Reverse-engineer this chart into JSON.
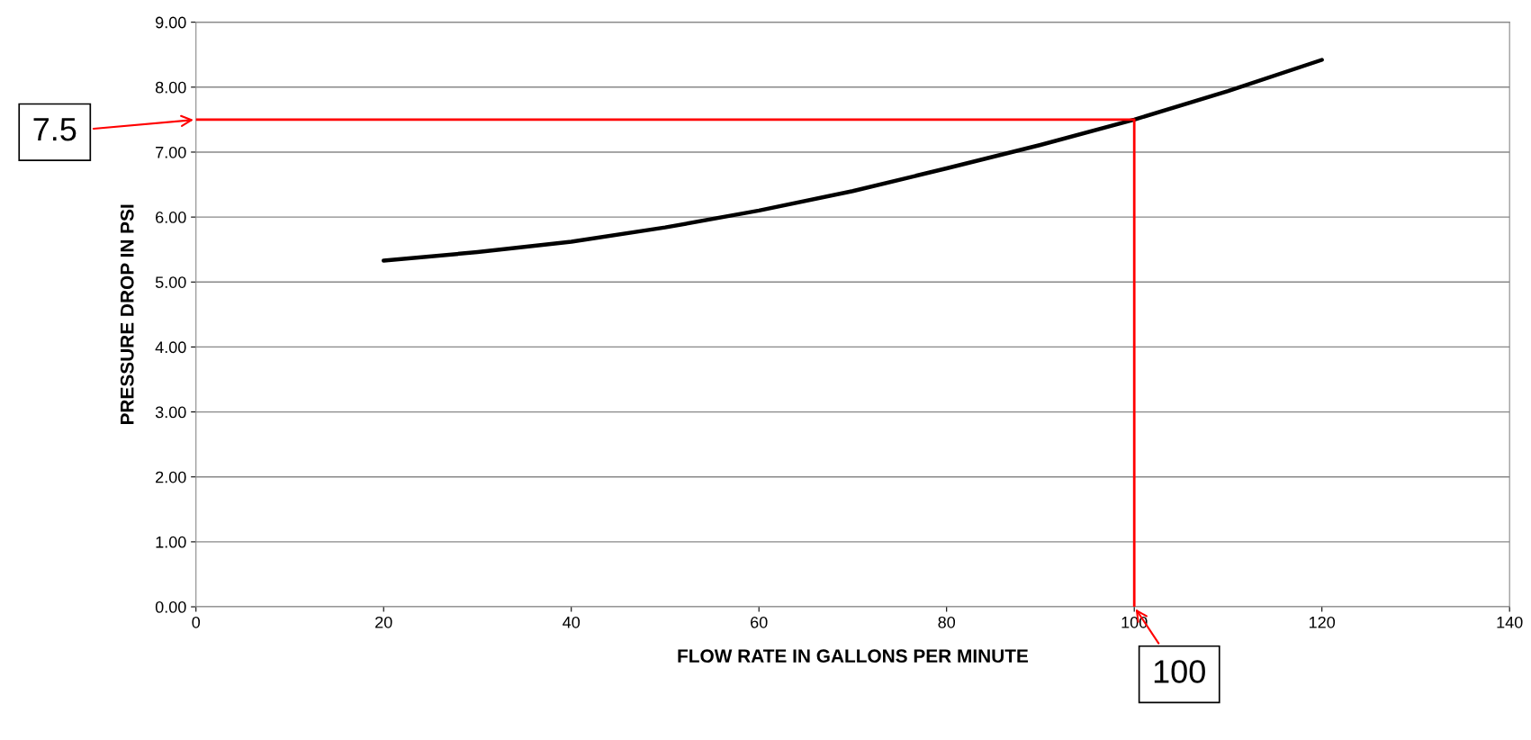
{
  "chart_data": {
    "type": "line",
    "xlabel": "FLOW RATE IN GALLONS PER MINUTE",
    "ylabel": "PRESSURE DROP IN PSI",
    "xlim": [
      0,
      140
    ],
    "xticks": [
      0,
      20,
      40,
      60,
      80,
      100,
      120,
      140
    ],
    "ylim": [
      0,
      9
    ],
    "yticks": [
      {
        "value": 0,
        "label": "0.00"
      },
      {
        "value": 1,
        "label": "1.00"
      },
      {
        "value": 2,
        "label": "2.00"
      },
      {
        "value": 3,
        "label": "3.00"
      },
      {
        "value": 4,
        "label": "4.00"
      },
      {
        "value": 5,
        "label": "5.00"
      },
      {
        "value": 6,
        "label": "6.00"
      },
      {
        "value": 7,
        "label": "7.00"
      },
      {
        "value": 8,
        "label": "8.00"
      },
      {
        "value": 9,
        "label": "9.00"
      }
    ],
    "grid": "y",
    "series": [
      {
        "color": "#000000",
        "x": [
          20,
          30,
          40,
          50,
          60,
          70,
          80,
          90,
          100,
          110,
          120
        ],
        "values": [
          5.33,
          5.46,
          5.62,
          5.84,
          6.1,
          6.4,
          6.75,
          7.11,
          7.5,
          7.94,
          8.42
        ]
      },
      {
        "color": "#ff0000",
        "x": [
          0,
          100,
          100
        ],
        "values": [
          7.5,
          7.5,
          0
        ]
      }
    ],
    "annotations": [
      "7.5",
      {
        "text": "100",
        "x": 100,
        "y": 0
      }
    ]
  }
}
